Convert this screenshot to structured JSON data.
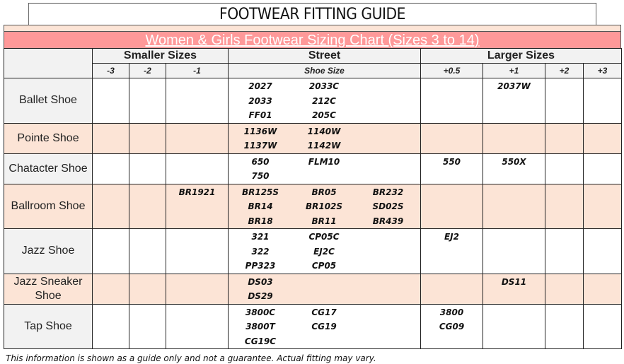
{
  "title": "FOOTWEAR FITTING GUIDE",
  "banner": "Women & Girls Footwear Sizing Chart (Sizes 3 to 14)",
  "groups": {
    "smaller": "Smaller Sizes",
    "street": "Street",
    "larger": "Larger Sizes"
  },
  "sub": {
    "m3": "-3",
    "m2": "-2",
    "m1": "-1",
    "street": "Shoe Size",
    "p05": "+0.5",
    "p1": "+1",
    "p2": "+2",
    "p3": "+3"
  },
  "colors": {
    "banner": "#FF9999",
    "pink_row": "#FCE4D6",
    "header": "#F2F2F2"
  },
  "rows": [
    {
      "label": "Ballet Shoe",
      "pink": false,
      "m1": [],
      "street": [
        [
          "2027",
          "2033",
          "FF01"
        ],
        [
          "2033C",
          "212C",
          "205C"
        ],
        []
      ],
      "p05": [],
      "p1": [
        "2037W"
      ]
    },
    {
      "label": "Pointe Shoe",
      "pink": true,
      "m1": [],
      "street": [
        [
          "1136W",
          "1137W"
        ],
        [
          "1140W",
          "1142W"
        ],
        []
      ],
      "p05": [],
      "p1": []
    },
    {
      "label": "Chatacter Shoe",
      "pink": false,
      "m1": [],
      "street": [
        [
          "650",
          "750"
        ],
        [
          "FLM10"
        ],
        []
      ],
      "p05": [
        "550"
      ],
      "p1": [
        "550X"
      ]
    },
    {
      "label": "Ballroom Shoe",
      "pink": true,
      "m1": [
        "BR1921"
      ],
      "street": [
        [
          "BR125S",
          "BR14",
          "BR18"
        ],
        [
          "BR05",
          "BR102S",
          "BR11"
        ],
        [
          "BR232",
          "SD02S",
          "BR439"
        ]
      ],
      "p05": [],
      "p1": []
    },
    {
      "label": "Jazz Shoe",
      "pink": false,
      "m1": [],
      "street": [
        [
          "321",
          "322",
          "PP323"
        ],
        [
          "CP05C",
          "EJ2C",
          "CP05"
        ],
        []
      ],
      "p05": [
        "EJ2"
      ],
      "p1": []
    },
    {
      "label": "Jazz Sneaker Shoe",
      "pink": true,
      "m1": [],
      "street": [
        [
          "DS03",
          "DS29"
        ],
        [],
        []
      ],
      "p05": [],
      "p1": [
        "DS11"
      ]
    },
    {
      "label": "Tap Shoe",
      "pink": false,
      "m1": [],
      "street": [
        [
          "3800C",
          "3800T",
          "CG19C"
        ],
        [
          "CG17",
          "CG19"
        ],
        []
      ],
      "p05": [
        "3800",
        "CG09"
      ],
      "p1": []
    }
  ],
  "footer": "This information is shown as a guide only and not a guarantee. Actual fitting may vary."
}
